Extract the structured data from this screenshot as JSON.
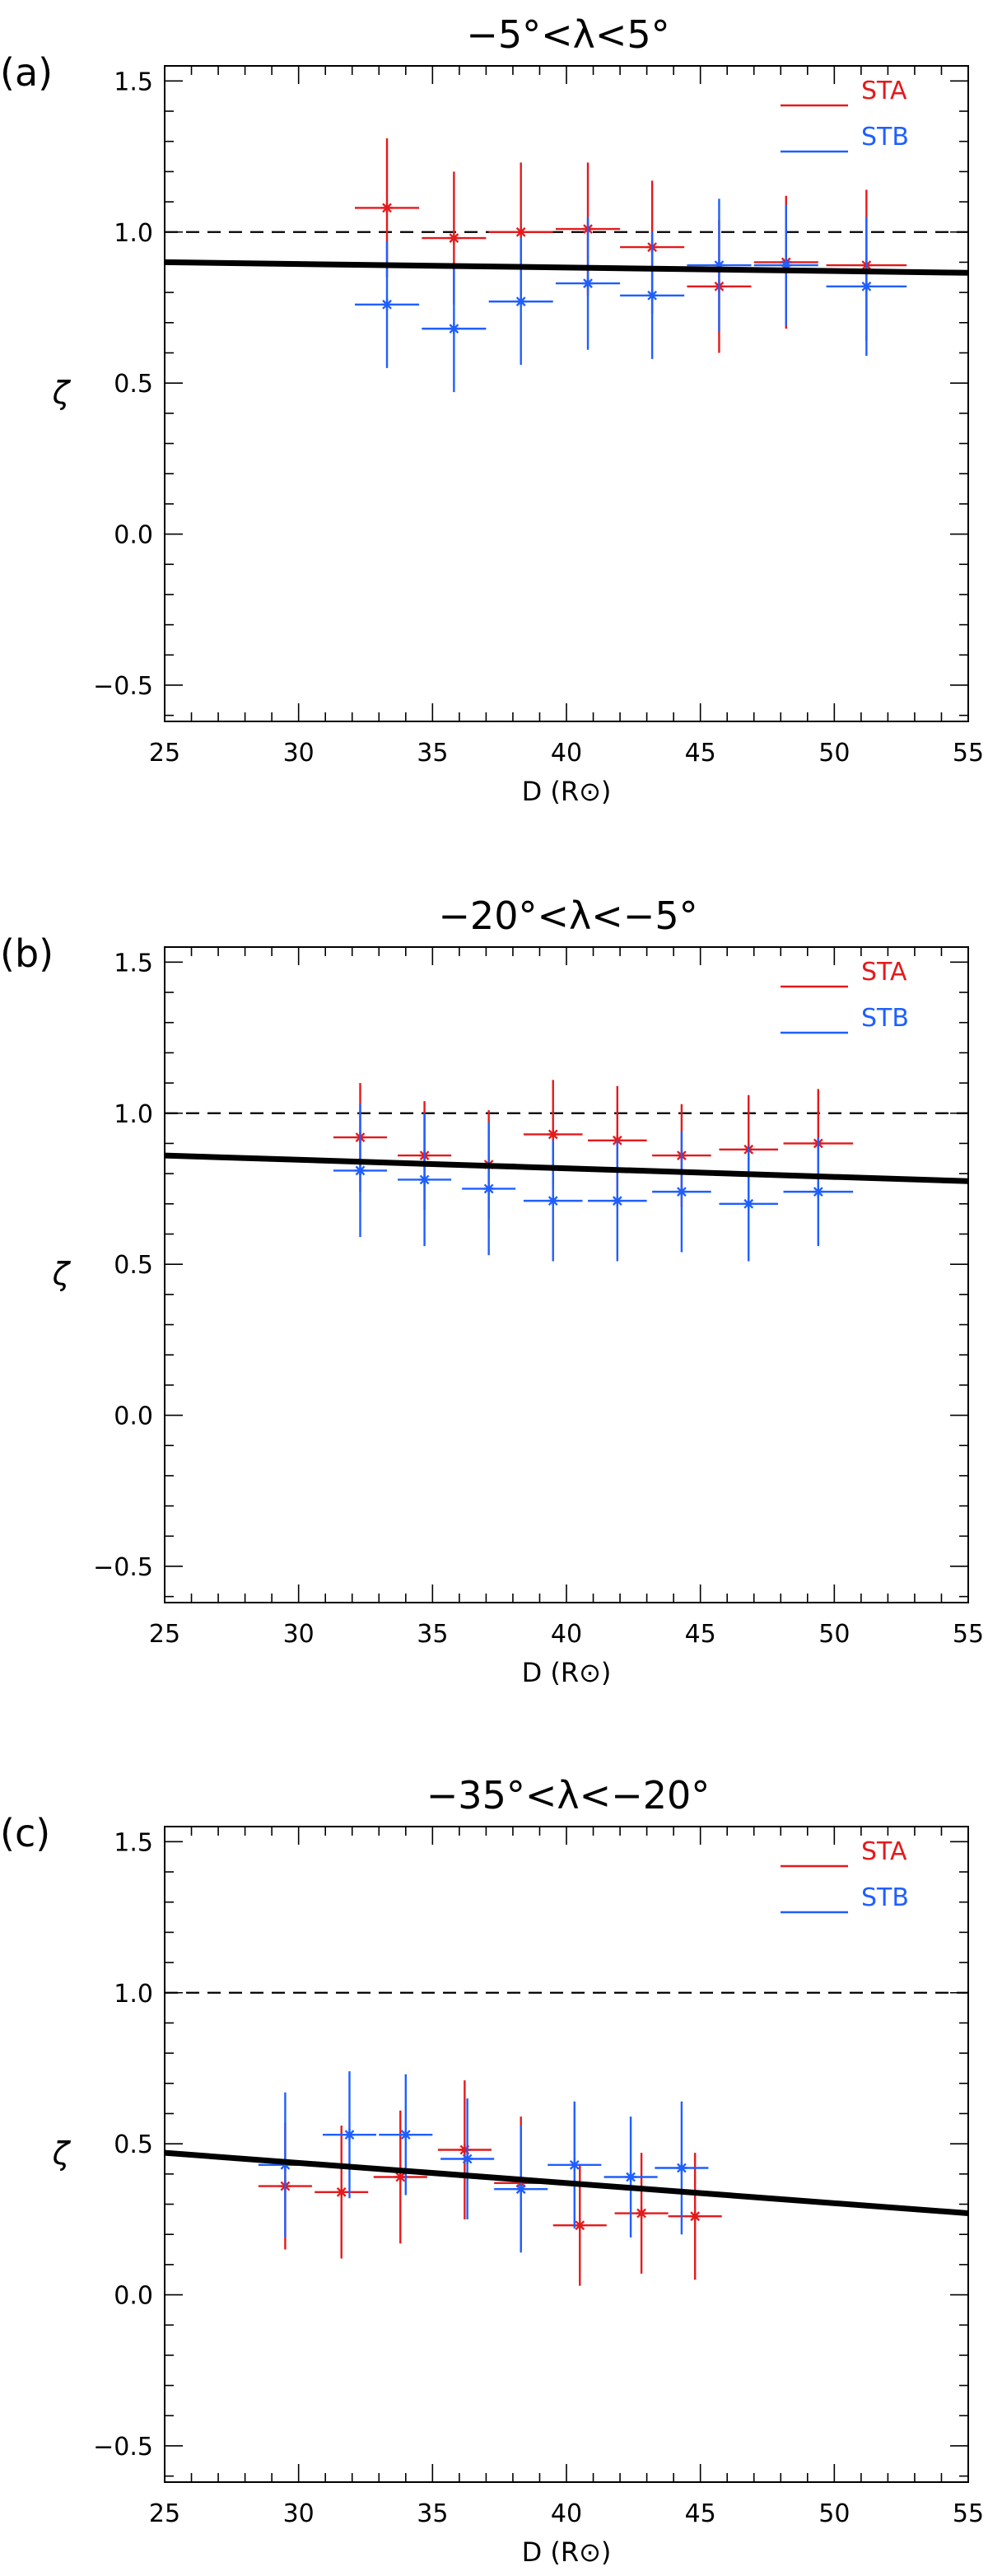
{
  "chart_data": [
    {
      "type": "scatter",
      "panel_label": "(a)",
      "title": "−5°<λ<5°",
      "xlabel": "D (R⊙)",
      "ylabel": "ζ",
      "xlim": [
        25,
        55
      ],
      "ylim": [
        -0.62,
        1.55
      ],
      "xticks": [
        25,
        30,
        35,
        40,
        45,
        50,
        55
      ],
      "yticks": [
        -0.5,
        0.0,
        0.5,
        1.0,
        1.5
      ],
      "ytick_labels": [
        "−0.5",
        "0.0",
        "0.5",
        "1.0",
        "1.5"
      ],
      "reference_line": 1.0,
      "fit_line": {
        "x": [
          25,
          55
        ],
        "y": [
          0.9,
          0.865
        ]
      },
      "legend": {
        "position": "top-right",
        "entries": [
          "STA",
          "STB"
        ]
      },
      "series": [
        {
          "name": "STA",
          "color": "#e41a1c",
          "points": [
            {
              "x": 33.3,
              "y": 1.08,
              "xerr": 1.2,
              "yerr": 0.23
            },
            {
              "x": 35.8,
              "y": 0.98,
              "xerr": 1.2,
              "yerr": 0.22
            },
            {
              "x": 38.3,
              "y": 1.0,
              "xerr": 1.2,
              "yerr": 0.23
            },
            {
              "x": 40.8,
              "y": 1.01,
              "xerr": 1.2,
              "yerr": 0.22
            },
            {
              "x": 43.2,
              "y": 0.95,
              "xerr": 1.2,
              "yerr": 0.22
            },
            {
              "x": 45.7,
              "y": 0.82,
              "xerr": 1.2,
              "yerr": 0.22
            },
            {
              "x": 48.2,
              "y": 0.9,
              "xerr": 1.2,
              "yerr": 0.22
            },
            {
              "x": 51.2,
              "y": 0.89,
              "xerr": 1.5,
              "yerr": 0.25
            }
          ]
        },
        {
          "name": "STB",
          "color": "#1f5fff",
          "points": [
            {
              "x": 33.3,
              "y": 0.76,
              "xerr": 1.2,
              "yerr": 0.21
            },
            {
              "x": 35.8,
              "y": 0.68,
              "xerr": 1.2,
              "yerr": 0.21
            },
            {
              "x": 38.3,
              "y": 0.77,
              "xerr": 1.2,
              "yerr": 0.21
            },
            {
              "x": 40.8,
              "y": 0.83,
              "xerr": 1.2,
              "yerr": 0.22
            },
            {
              "x": 43.2,
              "y": 0.79,
              "xerr": 1.2,
              "yerr": 0.21
            },
            {
              "x": 45.7,
              "y": 0.89,
              "xerr": 1.2,
              "yerr": 0.22
            },
            {
              "x": 48.2,
              "y": 0.89,
              "xerr": 1.2,
              "yerr": 0.2
            },
            {
              "x": 51.2,
              "y": 0.82,
              "xerr": 1.5,
              "yerr": 0.23
            }
          ]
        }
      ]
    },
    {
      "type": "scatter",
      "panel_label": "(b)",
      "title": "−20°<λ<−5°",
      "xlabel": "D (R⊙)",
      "ylabel": "ζ",
      "xlim": [
        25,
        55
      ],
      "ylim": [
        -0.62,
        1.55
      ],
      "xticks": [
        25,
        30,
        35,
        40,
        45,
        50,
        55
      ],
      "yticks": [
        -0.5,
        0.0,
        0.5,
        1.0,
        1.5
      ],
      "ytick_labels": [
        "−0.5",
        "0.0",
        "0.5",
        "1.0",
        "1.5"
      ],
      "reference_line": 1.0,
      "fit_line": {
        "x": [
          25,
          55
        ],
        "y": [
          0.86,
          0.775
        ]
      },
      "legend": {
        "position": "top-right",
        "entries": [
          "STA",
          "STB"
        ]
      },
      "series": [
        {
          "name": "STA",
          "color": "#e41a1c",
          "points": [
            {
              "x": 32.3,
              "y": 0.92,
              "xerr": 1.0,
              "yerr": 0.18
            },
            {
              "x": 34.7,
              "y": 0.86,
              "xerr": 1.0,
              "yerr": 0.18
            },
            {
              "x": 37.1,
              "y": 0.83,
              "xerr": 1.0,
              "yerr": 0.18
            },
            {
              "x": 39.5,
              "y": 0.93,
              "xerr": 1.1,
              "yerr": 0.18
            },
            {
              "x": 41.9,
              "y": 0.91,
              "xerr": 1.1,
              "yerr": 0.18
            },
            {
              "x": 44.3,
              "y": 0.86,
              "xerr": 1.1,
              "yerr": 0.17
            },
            {
              "x": 46.8,
              "y": 0.88,
              "xerr": 1.1,
              "yerr": 0.18
            },
            {
              "x": 49.4,
              "y": 0.9,
              "xerr": 1.3,
              "yerr": 0.18
            }
          ]
        },
        {
          "name": "STB",
          "color": "#1f5fff",
          "points": [
            {
              "x": 32.3,
              "y": 0.81,
              "xerr": 1.0,
              "yerr": 0.22
            },
            {
              "x": 34.7,
              "y": 0.78,
              "xerr": 1.0,
              "yerr": 0.22
            },
            {
              "x": 37.1,
              "y": 0.75,
              "xerr": 1.0,
              "yerr": 0.22
            },
            {
              "x": 39.5,
              "y": 0.71,
              "xerr": 1.1,
              "yerr": 0.2
            },
            {
              "x": 41.9,
              "y": 0.71,
              "xerr": 1.1,
              "yerr": 0.2
            },
            {
              "x": 44.3,
              "y": 0.74,
              "xerr": 1.1,
              "yerr": 0.2
            },
            {
              "x": 46.8,
              "y": 0.7,
              "xerr": 1.1,
              "yerr": 0.19
            },
            {
              "x": 49.4,
              "y": 0.74,
              "xerr": 1.3,
              "yerr": 0.18
            }
          ]
        }
      ]
    },
    {
      "type": "scatter",
      "panel_label": "(c)",
      "title": "−35°<λ<−20°",
      "xlabel": "D (R⊙)",
      "ylabel": "ζ",
      "xlim": [
        25,
        55
      ],
      "ylim": [
        -0.62,
        1.55
      ],
      "xticks": [
        25,
        30,
        35,
        40,
        45,
        50,
        55
      ],
      "yticks": [
        -0.5,
        0.0,
        0.5,
        1.0,
        1.5
      ],
      "ytick_labels": [
        "−0.5",
        "0.0",
        "0.5",
        "1.0",
        "1.5"
      ],
      "reference_line": 1.0,
      "fit_line": {
        "x": [
          25,
          55
        ],
        "y": [
          0.47,
          0.27
        ]
      },
      "legend": {
        "position": "top-right",
        "entries": [
          "STA",
          "STB"
        ]
      },
      "series": [
        {
          "name": "STA",
          "color": "#e41a1c",
          "points": [
            {
              "x": 29.5,
              "y": 0.36,
              "xerr": 1.0,
              "yerr": 0.21
            },
            {
              "x": 31.6,
              "y": 0.34,
              "xerr": 1.0,
              "yerr": 0.22
            },
            {
              "x": 33.8,
              "y": 0.39,
              "xerr": 1.0,
              "yerr": 0.22
            },
            {
              "x": 36.2,
              "y": 0.48,
              "xerr": 1.0,
              "yerr": 0.23
            },
            {
              "x": 38.3,
              "y": 0.37,
              "xerr": 1.0,
              "yerr": 0.22
            },
            {
              "x": 40.5,
              "y": 0.23,
              "xerr": 1.0,
              "yerr": 0.2
            },
            {
              "x": 42.8,
              "y": 0.27,
              "xerr": 1.0,
              "yerr": 0.2
            },
            {
              "x": 44.8,
              "y": 0.26,
              "xerr": 1.0,
              "yerr": 0.21
            }
          ]
        },
        {
          "name": "STB",
          "color": "#1f5fff",
          "points": [
            {
              "x": 29.5,
              "y": 0.43,
              "xerr": 1.0,
              "yerr": 0.24
            },
            {
              "x": 31.9,
              "y": 0.53,
              "xerr": 1.0,
              "yerr": 0.21
            },
            {
              "x": 34.0,
              "y": 0.53,
              "xerr": 1.0,
              "yerr": 0.2
            },
            {
              "x": 36.3,
              "y": 0.45,
              "xerr": 1.0,
              "yerr": 0.2
            },
            {
              "x": 38.3,
              "y": 0.35,
              "xerr": 1.0,
              "yerr": 0.21
            },
            {
              "x": 40.3,
              "y": 0.43,
              "xerr": 1.0,
              "yerr": 0.21
            },
            {
              "x": 42.4,
              "y": 0.39,
              "xerr": 1.0,
              "yerr": 0.2
            },
            {
              "x": 44.3,
              "y": 0.42,
              "xerr": 1.0,
              "yerr": 0.22
            }
          ]
        }
      ]
    }
  ]
}
